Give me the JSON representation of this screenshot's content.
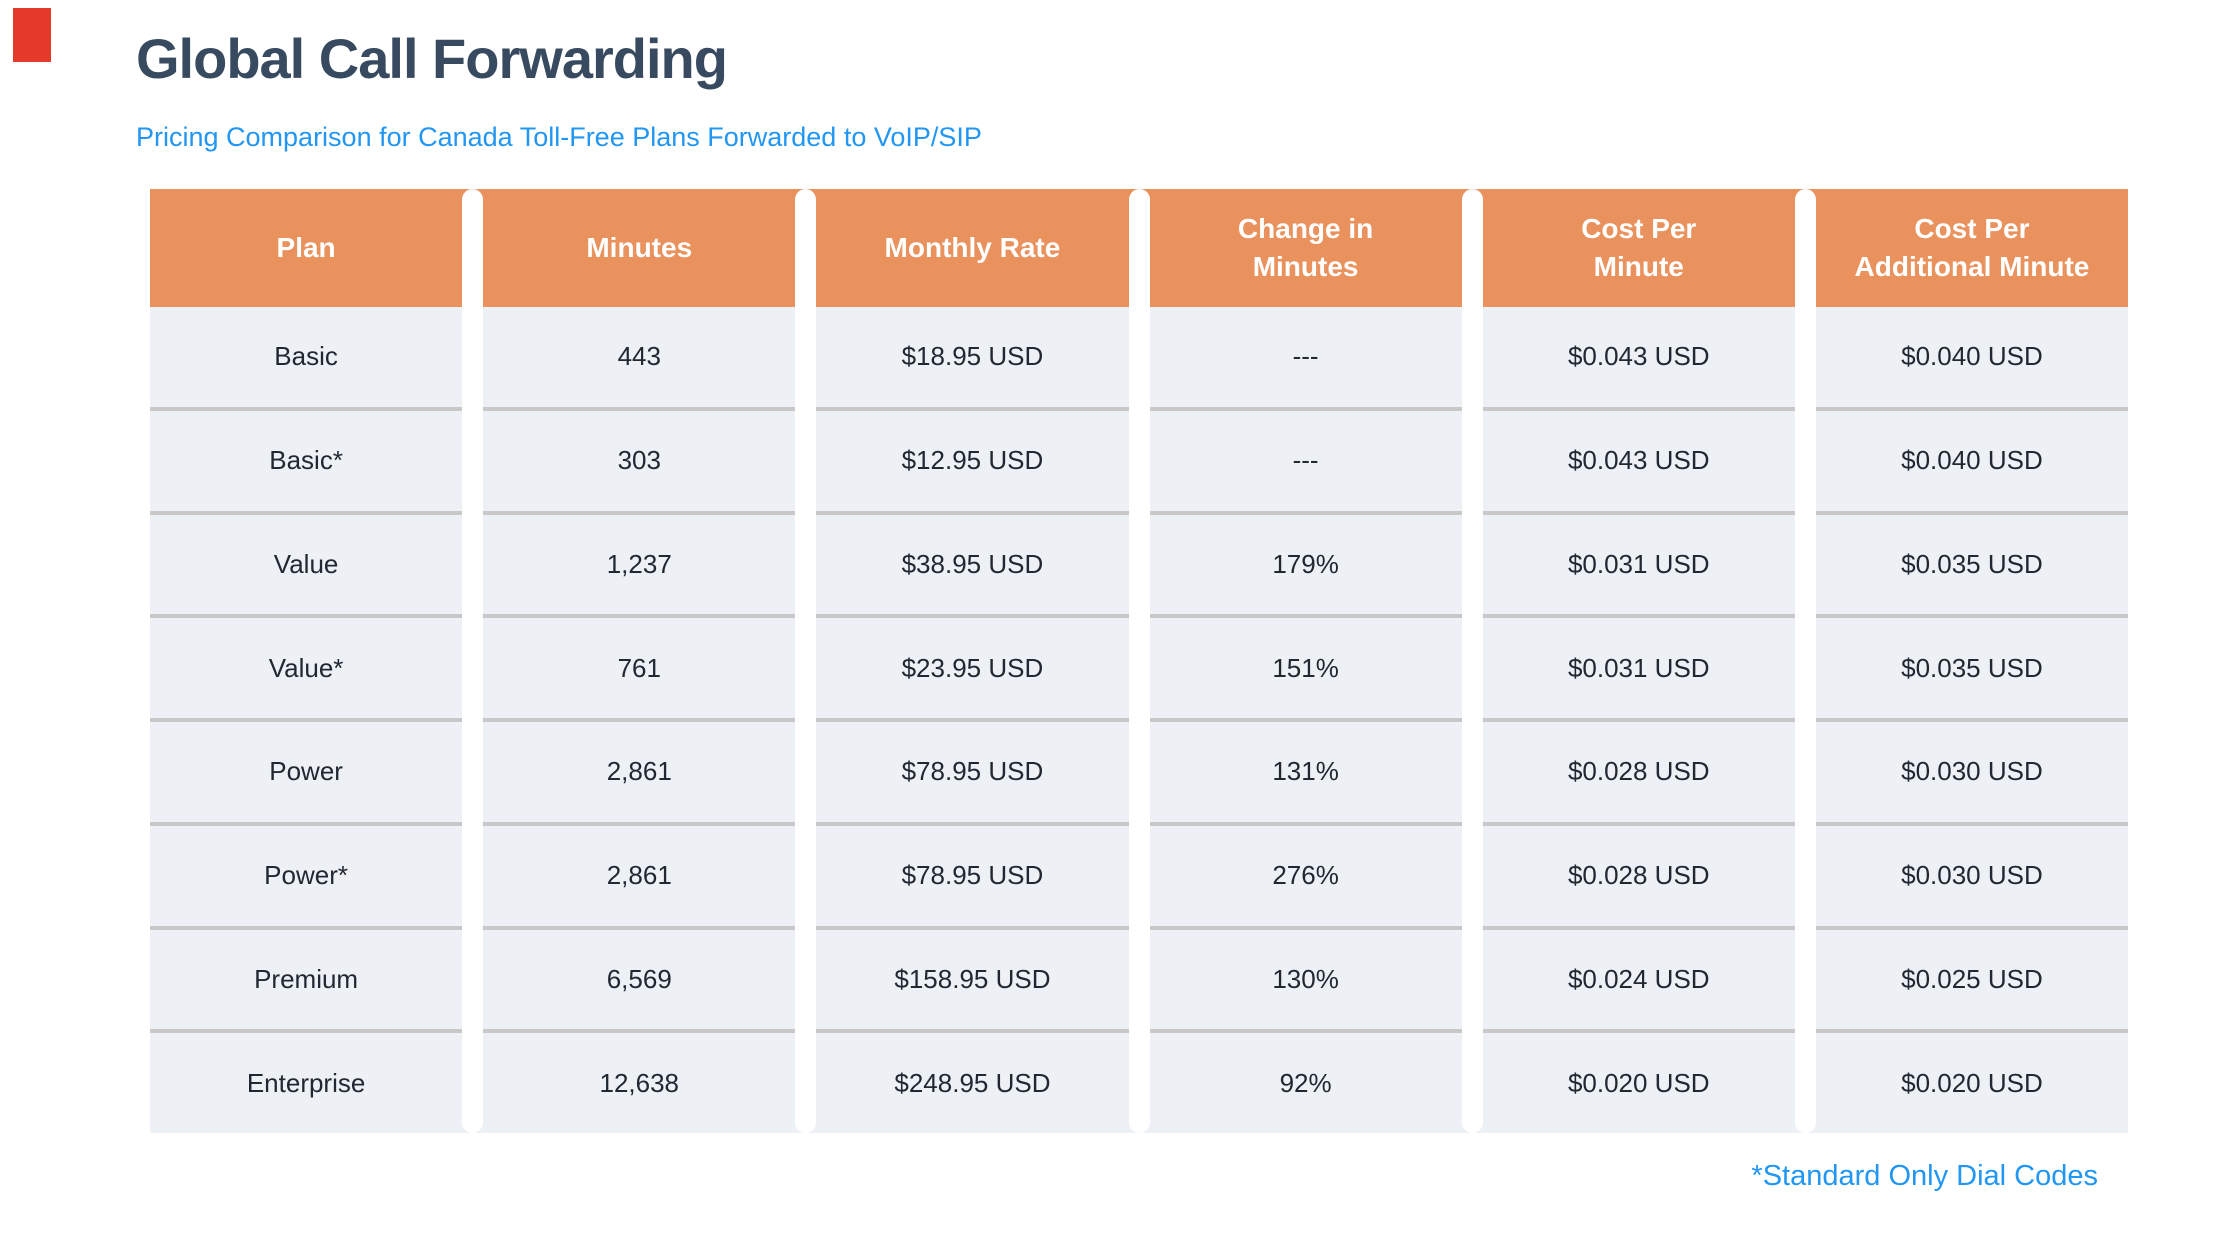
{
  "page": {
    "title": "Global Call Forwarding",
    "subtitle": "Pricing Comparison for Canada Toll-Free Plans Forwarded to VoIP/SIP",
    "footnote": "*Standard Only Dial Codes"
  },
  "colors": {
    "title_text": "#384A5F",
    "accent_blue": "#2196F3",
    "header_bg": "#E9925E",
    "header_text": "#FFFFFF",
    "row_bg": "#EDF0F5",
    "row_divider": "#C8C8C8",
    "cell_text": "#212832",
    "corner_marker": "#E5392B"
  },
  "table": {
    "header_lines": [
      [
        "Plan"
      ],
      [
        "Minutes"
      ],
      [
        "Monthly Rate"
      ],
      [
        "Change in",
        "Minutes"
      ],
      [
        "Cost Per",
        "Minute"
      ],
      [
        "Cost Per",
        "Additional Minute"
      ]
    ]
  },
  "chart_data": {
    "type": "table",
    "title": "Global Call Forwarding",
    "subtitle": "Pricing Comparison for Canada Toll-Free Plans Forwarded to VoIP/SIP",
    "columns": [
      "Plan",
      "Minutes",
      "Monthly Rate",
      "Change in Minutes",
      "Cost Per Minute",
      "Cost Per Additional Minute"
    ],
    "rows": [
      [
        "Basic",
        "443",
        "$18.95 USD",
        "---",
        "$0.043 USD",
        "$0.040 USD"
      ],
      [
        "Basic*",
        "303",
        "$12.95 USD",
        "---",
        "$0.043 USD",
        "$0.040 USD"
      ],
      [
        "Value",
        "1,237",
        "$38.95 USD",
        "179%",
        "$0.031 USD",
        "$0.035 USD"
      ],
      [
        "Value*",
        "761",
        "$23.95 USD",
        "151%",
        "$0.031 USD",
        "$0.035 USD"
      ],
      [
        "Power",
        "2,861",
        "$78.95 USD",
        "131%",
        "$0.028 USD",
        "$0.030 USD"
      ],
      [
        "Power*",
        "2,861",
        "$78.95 USD",
        "276%",
        "$0.028 USD",
        "$0.030 USD"
      ],
      [
        "Premium",
        "6,569",
        "$158.95 USD",
        "130%",
        "$0.024 USD",
        "$0.025 USD"
      ],
      [
        "Enterprise",
        "12,638",
        "$248.95 USD",
        "92%",
        "$0.020 USD",
        "$0.020 USD"
      ]
    ],
    "footnote": "*Standard Only Dial Codes",
    "layout": {
      "header_fill": "#E9925E",
      "row_fill": "#EDF0F5",
      "grid": "horizontal-dividers"
    }
  }
}
